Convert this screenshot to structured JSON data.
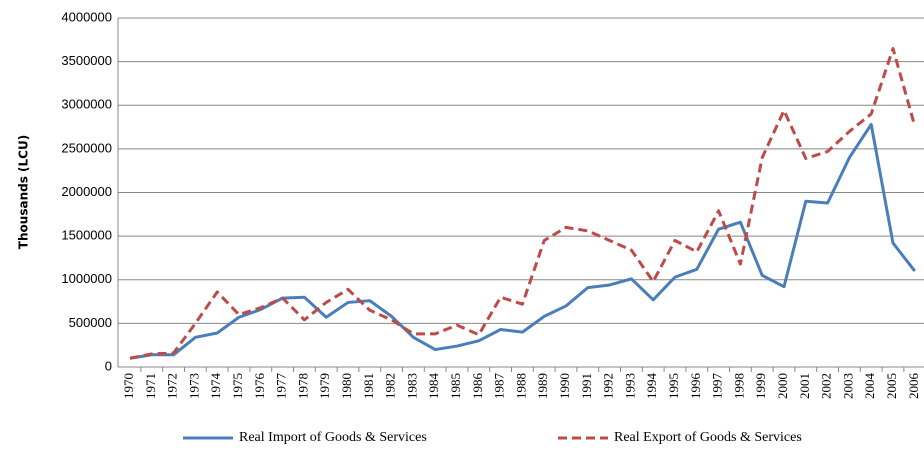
{
  "chart_data": {
    "type": "line",
    "y_label": "Thousands (LCU)",
    "categories": [
      "1970",
      "1971",
      "1972",
      "1973",
      "1974",
      "1975",
      "1976",
      "1977",
      "1978",
      "1979",
      "1980",
      "1981",
      "1982",
      "1983",
      "1984",
      "1985",
      "1986",
      "1987",
      "1988",
      "1989",
      "1990",
      "1991",
      "1992",
      "1993",
      "1994",
      "1995",
      "1996",
      "1997",
      "1998",
      "1999",
      "2000",
      "2001",
      "2002",
      "2003",
      "2004",
      "2005",
      "2006"
    ],
    "series": [
      {
        "name": "Real Import of Goods & Services",
        "color": "#4a7ebb",
        "dashed": false,
        "values": [
          100000,
          140000,
          140000,
          340000,
          390000,
          570000,
          660000,
          790000,
          800000,
          570000,
          740000,
          760000,
          580000,
          340000,
          200000,
          240000,
          300000,
          430000,
          400000,
          580000,
          700000,
          910000,
          940000,
          1010000,
          770000,
          1030000,
          1120000,
          1580000,
          1660000,
          1050000,
          920000,
          1900000,
          1880000,
          2400000,
          2780000,
          1420000,
          1100000
        ]
      },
      {
        "name": "Real Export of Goods & Services",
        "color": "#be4b48",
        "dashed": true,
        "values": [
          100000,
          150000,
          160000,
          500000,
          860000,
          600000,
          680000,
          790000,
          540000,
          740000,
          890000,
          650000,
          540000,
          380000,
          380000,
          480000,
          370000,
          800000,
          720000,
          1450000,
          1600000,
          1560000,
          1450000,
          1340000,
          980000,
          1450000,
          1320000,
          1790000,
          1180000,
          2400000,
          2940000,
          2390000,
          2470000,
          2700000,
          2900000,
          3650000,
          2760000
        ]
      }
    ],
    "ylim": [
      0,
      4000000
    ],
    "yticks": [
      0,
      500000,
      1000000,
      1500000,
      2000000,
      2500000,
      3000000,
      3500000,
      4000000
    ],
    "grid": true
  }
}
